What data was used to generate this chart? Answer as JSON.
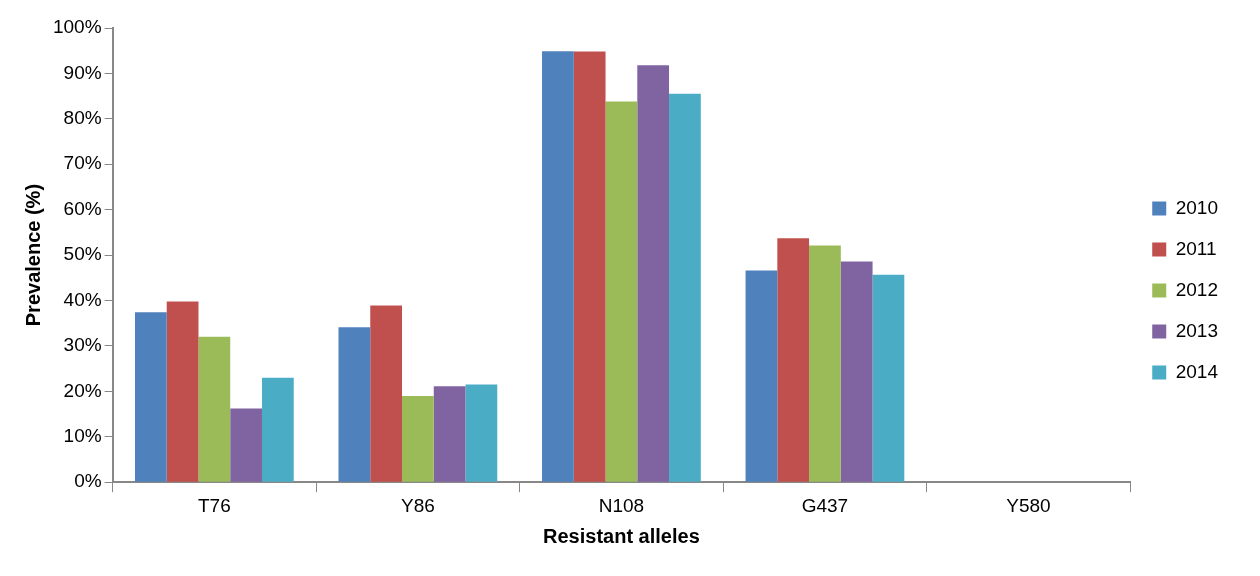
{
  "chart_data": {
    "type": "bar",
    "xlabel": "Resistant alleles",
    "ylabel": "Prevalence (%)",
    "categories": [
      "T76",
      "Y86",
      "N108",
      "G437",
      "Y580"
    ],
    "series": [
      {
        "name": "2010",
        "color": "#4f81bd",
        "values": [
          37.4,
          34.1,
          94.9,
          46.6,
          0
        ]
      },
      {
        "name": "2011",
        "color": "#c0504d",
        "values": [
          39.8,
          38.9,
          94.8,
          53.7,
          0
        ]
      },
      {
        "name": "2012",
        "color": "#9bbb59",
        "values": [
          32.0,
          19.0,
          83.8,
          52.1,
          0
        ]
      },
      {
        "name": "2013",
        "color": "#8064a2",
        "values": [
          16.2,
          21.1,
          91.8,
          48.6,
          0
        ]
      },
      {
        "name": "2014",
        "color": "#4bacc6",
        "values": [
          23.0,
          21.5,
          85.5,
          45.7,
          0
        ]
      }
    ],
    "ylim": [
      0,
      100
    ],
    "yticks": [
      {
        "value": 0,
        "label": "0%"
      },
      {
        "value": 10,
        "label": "10%"
      },
      {
        "value": 20,
        "label": "20%"
      },
      {
        "value": 30,
        "label": "30%"
      },
      {
        "value": 40,
        "label": "40%"
      },
      {
        "value": 50,
        "label": "50%"
      },
      {
        "value": 60,
        "label": "60%"
      },
      {
        "value": 70,
        "label": "70%"
      },
      {
        "value": 80,
        "label": "80%"
      },
      {
        "value": 90,
        "label": "90%"
      },
      {
        "value": 100,
        "label": "100%"
      }
    ],
    "grid": false,
    "legend": "right"
  }
}
